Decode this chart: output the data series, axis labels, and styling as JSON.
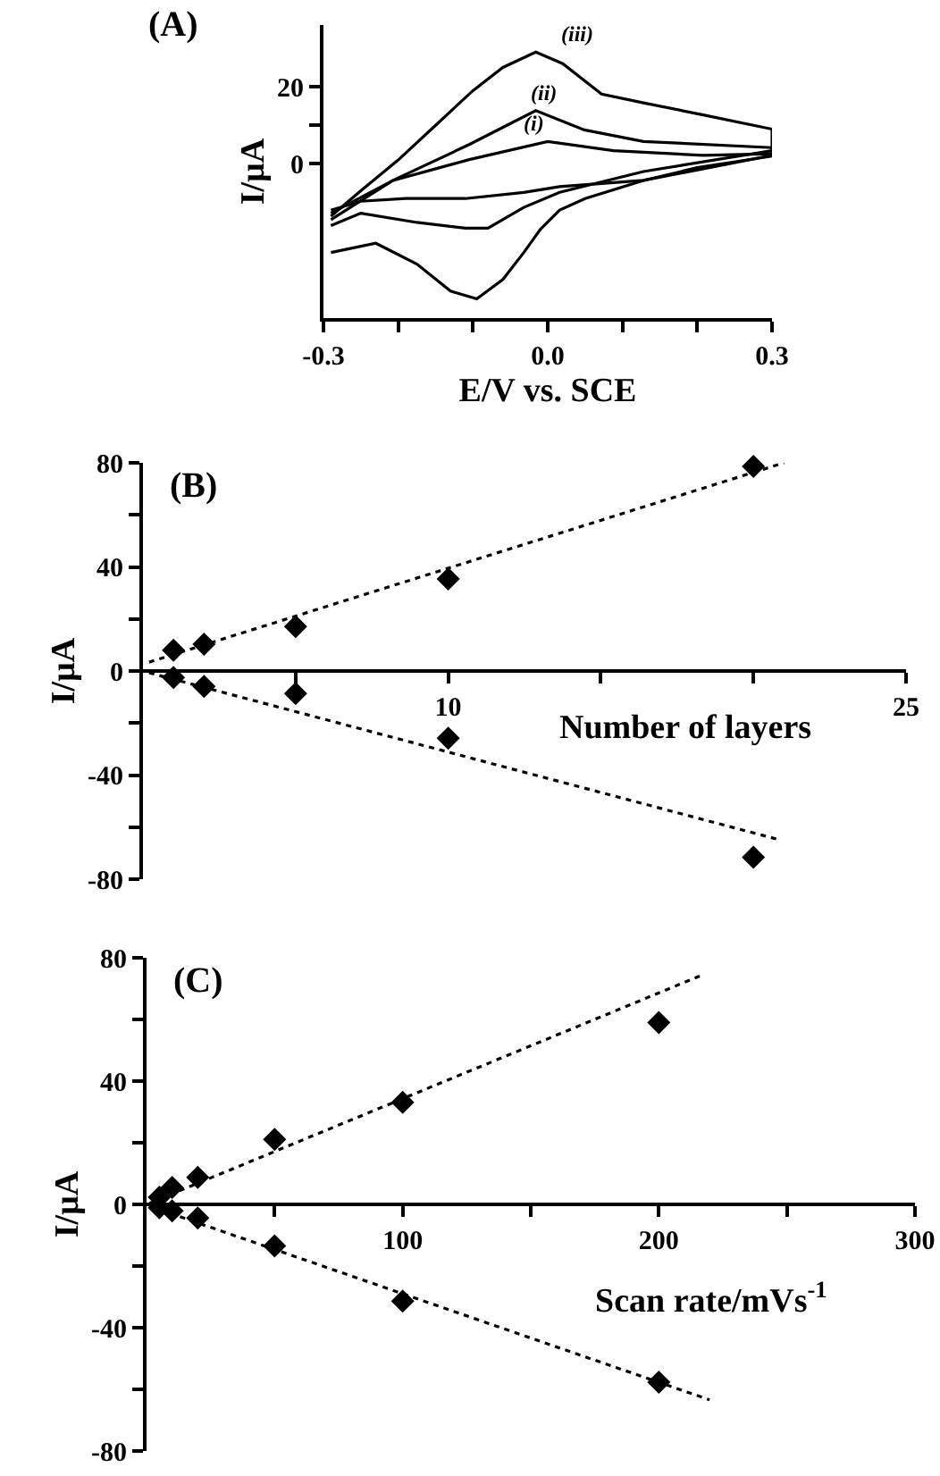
{
  "chart_data": [
    {
      "type": "line",
      "title": "(A)",
      "xlabel": "E/V vs. SCE",
      "ylabel": "I/μA",
      "marker": "none",
      "line_style": "solid",
      "xlim": [
        -0.3,
        0.3
      ],
      "xticks": [
        -0.3,
        {
          "value": -0.2,
          "label": null
        },
        {
          "value": -0.1,
          "label": null
        },
        {
          "value": 0,
          "label": "0.0"
        },
        {
          "value": 0.1,
          "label": null
        },
        {
          "value": 0.2,
          "label": null
        },
        0.3
      ],
      "ylim": [
        -40,
        36
      ],
      "yticks": [
        0,
        {
          "value": 10,
          "label": null
        },
        20
      ],
      "series": [
        {
          "color": "#000000",
          "x": [
            -0.29,
            -0.207,
            -0.105,
            0.0,
            0.088,
            0.208,
            0.3,
            0.3,
            0.128,
            0.016,
            -0.032,
            -0.11,
            -0.19,
            -0.25,
            -0.29
          ],
          "values": [
            -12.8,
            -4.3,
            1.1,
            5.8,
            3.4,
            2.2,
            2.6,
            2.2,
            -4.3,
            -5.9,
            -7.4,
            -9,
            -9,
            -9.7,
            -12
          ]
        },
        {
          "color": "#000000",
          "x": [
            -0.29,
            -0.207,
            -0.105,
            -0.016,
            0.049,
            0.128,
            0.3,
            0.3,
            0.128,
            0.016,
            -0.032,
            -0.08,
            -0.11,
            -0.175,
            -0.25,
            -0.29
          ],
          "values": [
            -14.5,
            -4.3,
            5,
            13.8,
            8.8,
            5.8,
            4.2,
            3.4,
            -2,
            -7.4,
            -11.3,
            -16.7,
            -16.7,
            -15.2,
            -12.8,
            -16
          ]
        },
        {
          "color": "#000000",
          "x": [
            -0.29,
            -0.25,
            -0.2,
            -0.15,
            -0.1,
            -0.06,
            -0.016,
            0.02,
            0.072,
            0.128,
            0.208,
            0.3,
            0.3,
            0.2,
            0.128,
            0.05,
            0.016,
            -0.01,
            -0.032,
            -0.06,
            -0.095,
            -0.13,
            -0.175,
            -0.23,
            -0.29
          ],
          "values": [
            -13.6,
            -7,
            1,
            10,
            19,
            25,
            29,
            26,
            18.1,
            15.8,
            12.7,
            9,
            2,
            -1,
            -4.3,
            -9,
            -12,
            -17,
            -23,
            -30,
            -35,
            -33,
            -26,
            -20.6,
            -23
          ]
        }
      ],
      "annotations": [
        "(iii)",
        "(ii)",
        "(i)"
      ]
    },
    {
      "type": "scatter",
      "title": "(B)",
      "xlabel": "Number of layers",
      "ylabel": "I/μA",
      "marker": "diamond",
      "xlim": [
        0,
        25
      ],
      "xticks": [
        {
          "value": 5,
          "label": null
        },
        10,
        {
          "value": 15,
          "label": null
        },
        {
          "value": 20,
          "label": null
        },
        25
      ],
      "ylim": [
        -80,
        80
      ],
      "yticks": [
        -80,
        {
          "value": -60,
          "label": null
        },
        -40,
        {
          "value": -20,
          "label": null
        },
        0,
        {
          "value": 20,
          "label": null
        },
        40,
        {
          "value": 60,
          "label": null
        },
        80
      ],
      "series": [
        {
          "color": "#000000",
          "x": [
            1,
            2,
            5,
            10,
            20
          ],
          "values": [
            8,
            10.3,
            17.1,
            35.4,
            78.6
          ]
        },
        {
          "color": "#000000",
          "x": [
            1,
            2,
            5,
            10,
            20
          ],
          "values": [
            -2.5,
            -5.9,
            -8.7,
            -25.8,
            -71.6
          ]
        },
        {
          "type": "line",
          "marker": "none",
          "line_style": "dotted",
          "color": "#000000",
          "x": [
            0.2,
            21
          ],
          "values": [
            3.4,
            80
          ]
        },
        {
          "type": "line",
          "marker": "none",
          "line_style": "dotted",
          "color": "#000000",
          "x": [
            0.2,
            20.8
          ],
          "values": [
            -0.7,
            -64.7
          ]
        }
      ]
    },
    {
      "type": "scatter",
      "title": "(C)",
      "xlabel": "Scan rate/mVs$^{-1}$",
      "ylabel": "I/μA",
      "marker": "diamond",
      "xlim": [
        0,
        300
      ],
      "xticks": [
        {
          "value": 50,
          "label": null
        },
        100,
        {
          "value": 150,
          "label": null
        },
        200,
        {
          "value": 250,
          "label": null
        },
        300
      ],
      "ylim": [
        -80,
        80
      ],
      "yticks": [
        -80,
        {
          "value": -60,
          "label": null
        },
        -40,
        {
          "value": -20,
          "label": null
        },
        0,
        {
          "value": 20,
          "label": null
        },
        40,
        {
          "value": 60,
          "label": null
        },
        80
      ],
      "series": [
        {
          "color": "#000000",
          "x": [
            5,
            10,
            20,
            50,
            100,
            200
          ],
          "values": [
            2.3,
            5.5,
            8.8,
            21.1,
            33.1,
            59
          ]
        },
        {
          "color": "#000000",
          "x": [
            5,
            10,
            20,
            50,
            100,
            200
          ],
          "values": [
            -1.1,
            -2.1,
            -4.4,
            -13.5,
            -31.4,
            -57.7
          ]
        },
        {
          "type": "line",
          "marker": "none",
          "line_style": "dotted",
          "color": "#000000",
          "x": [
            1.2,
            216
          ],
          "values": [
            0.4,
            74.1
          ]
        },
        {
          "type": "line",
          "marker": "none",
          "line_style": "dotted",
          "color": "#000000",
          "x": [
            1.2,
            219.8
          ],
          "values": [
            -0.6,
            -63.4
          ]
        }
      ]
    }
  ]
}
